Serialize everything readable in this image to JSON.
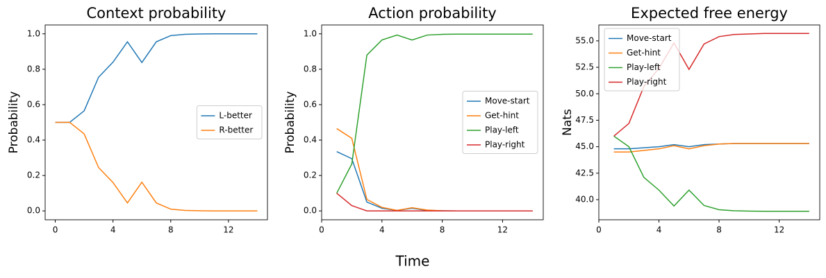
{
  "chart_data": [
    {
      "type": "line",
      "title": "Context probability",
      "ylabel": "Probability",
      "x": [
        0,
        1,
        2,
        3,
        4,
        5,
        6,
        7,
        8,
        9,
        10,
        11,
        12,
        13,
        14
      ],
      "series": [
        {
          "name": "L-better",
          "color": "#1f77b4",
          "values": [
            0.5,
            0.5,
            0.565,
            0.755,
            0.84,
            0.955,
            0.838,
            0.955,
            0.99,
            0.997,
            0.999,
            1.0,
            1.0,
            1.0,
            1.0
          ]
        },
        {
          "name": "R-better",
          "color": "#ff7f0e",
          "values": [
            0.5,
            0.5,
            0.435,
            0.245,
            0.16,
            0.045,
            0.162,
            0.045,
            0.01,
            0.003,
            0.001,
            0,
            0,
            0,
            0
          ]
        }
      ],
      "xlim": [
        -0.7,
        14.7
      ],
      "xticks": [
        0,
        4,
        8,
        12
      ],
      "ylim": [
        -0.05,
        1.05
      ],
      "yticks": [
        {
          "value": 0,
          "label": "0.0"
        },
        0.2,
        0.4,
        0.6,
        0.8,
        {
          "value": 1,
          "label": "1.0"
        }
      ],
      "legend": "center right",
      "grid": false
    },
    {
      "type": "line",
      "title": "Action probability",
      "ylabel": "Probability",
      "x": [
        1,
        2,
        3,
        4,
        5,
        6,
        7,
        8,
        9,
        10,
        11,
        12,
        13,
        14
      ],
      "series": [
        {
          "name": "Move-start",
          "color": "#1f77b4",
          "values": [
            0.335,
            0.295,
            0.05,
            0.015,
            0.003,
            0.015,
            0.003,
            0.001,
            0,
            0,
            0,
            0,
            0,
            0
          ]
        },
        {
          "name": "Get-hint",
          "color": "#ff7f0e",
          "values": [
            0.465,
            0.41,
            0.065,
            0.02,
            0.003,
            0.018,
            0.005,
            0.001,
            0,
            0,
            0,
            0,
            0,
            0
          ]
        },
        {
          "name": "Play-left",
          "color": "#2ca02c",
          "values": [
            0.1,
            0.265,
            0.88,
            0.965,
            0.993,
            0.965,
            0.993,
            0.997,
            0.998,
            0.998,
            0.998,
            0.998,
            0.998,
            0.998
          ]
        },
        {
          "name": "Play-right",
          "color": "#d62728",
          "values": [
            0.1,
            0.03,
            0,
            0,
            0,
            0,
            0,
            0,
            0,
            0,
            0,
            0,
            0,
            0
          ]
        }
      ],
      "xlim": [
        0,
        14.7
      ],
      "xticks": [
        0,
        4,
        8,
        12
      ],
      "ylim": [
        -0.05,
        1.05
      ],
      "yticks": [
        {
          "value": 0,
          "label": "0.0"
        },
        0.2,
        0.4,
        0.6,
        0.8,
        {
          "value": 1,
          "label": "1.0"
        }
      ],
      "legend": "center right",
      "grid": false
    },
    {
      "type": "line",
      "title": "Expected free energy",
      "ylabel": "Nats",
      "x": [
        1,
        2,
        3,
        4,
        5,
        6,
        7,
        8,
        9,
        10,
        11,
        12,
        13,
        14
      ],
      "series": [
        {
          "name": "Move-start",
          "color": "#1f77b4",
          "values": [
            44.8,
            44.8,
            44.9,
            45.0,
            45.2,
            45.0,
            45.2,
            45.25,
            45.3,
            45.3,
            45.3,
            45.3,
            45.3,
            45.3
          ]
        },
        {
          "name": "Get-hint",
          "color": "#ff7f0e",
          "values": [
            44.5,
            44.5,
            44.65,
            44.8,
            45.1,
            44.8,
            45.1,
            45.25,
            45.3,
            45.3,
            45.3,
            45.3,
            45.3,
            45.3
          ]
        },
        {
          "name": "Play-left",
          "color": "#2ca02c",
          "values": [
            46.0,
            45.0,
            42.1,
            40.9,
            39.4,
            40.9,
            39.45,
            39.05,
            38.95,
            38.92,
            38.9,
            38.9,
            38.9,
            38.9
          ]
        },
        {
          "name": "Play-right",
          "color": "#d62728",
          "values": [
            46.0,
            47.2,
            50.7,
            52.4,
            54.8,
            52.3,
            54.7,
            55.4,
            55.6,
            55.65,
            55.7,
            55.7,
            55.7,
            55.7
          ]
        }
      ],
      "xlim": [
        0,
        14.7
      ],
      "xticks": [
        0,
        4,
        8,
        12
      ],
      "ylim": [
        38.1,
        56.5
      ],
      "yticks": [
        {
          "value": 40,
          "label": "40.0"
        },
        42.5,
        {
          "value": 45,
          "label": "45.0"
        },
        47.5,
        {
          "value": 50,
          "label": "50.0"
        },
        52.5,
        {
          "value": 55,
          "label": "55.0"
        }
      ],
      "legend": "upper left",
      "grid": false
    }
  ],
  "supxlabel": "Time"
}
